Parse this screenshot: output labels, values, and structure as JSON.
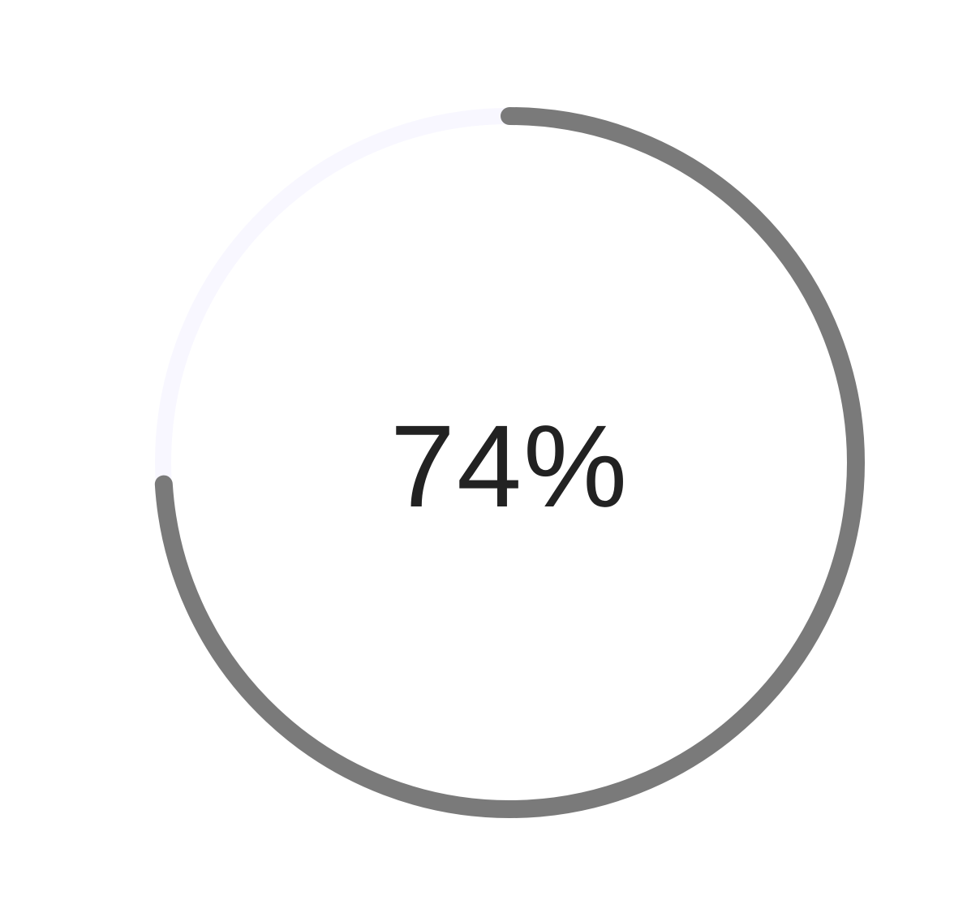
{
  "progress": {
    "value": 0.74,
    "label": "74%",
    "track_color": "#f8f7ff",
    "fill_color": "#7a7a7a",
    "text_color": "#222222"
  }
}
